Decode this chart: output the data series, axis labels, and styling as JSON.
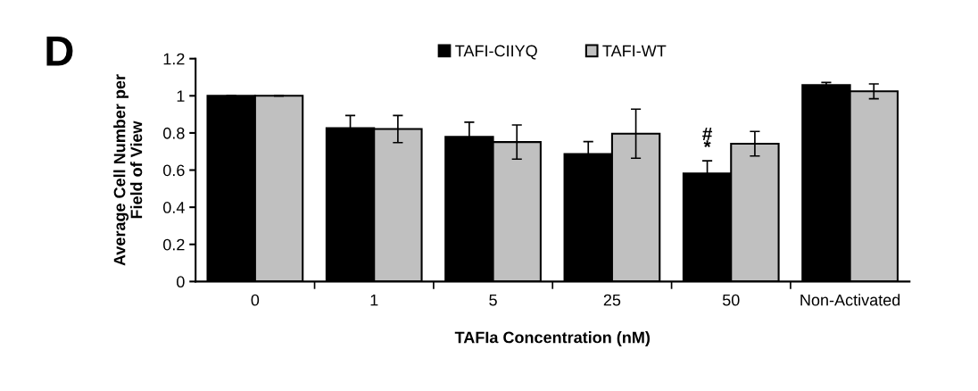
{
  "chart_data": {
    "type": "bar",
    "xlabel": "TAFIa Concentration (nM)",
    "ylabel": "Average Cell Number per\nField of View",
    "categories": [
      "0",
      "1",
      "5",
      "25",
      "50",
      "Non-Activated"
    ],
    "series": [
      {
        "name": "TAFI-CIIYQ",
        "color": "#000000",
        "values": [
          1.0,
          0.826,
          0.779,
          0.687,
          0.582,
          1.058
        ],
        "errors": [
          null,
          0.068,
          0.079,
          0.066,
          0.068,
          0.014
        ]
      },
      {
        "name": "TAFI-WT",
        "color": "#c0c0c0",
        "values": [
          1.0,
          0.821,
          0.751,
          0.796,
          0.742,
          1.024
        ],
        "errors": [
          null,
          0.073,
          0.092,
          0.132,
          0.066,
          0.04
        ]
      }
    ],
    "ylim": [
      0,
      1.2
    ],
    "yticks": [
      0,
      0.2,
      0.4,
      0.6,
      0.8,
      1,
      1.2
    ],
    "grid": false,
    "legend": "top",
    "annotations": [
      "D",
      {
        "text": "#",
        "x": "50",
        "y": 0.74
      },
      {
        "text": "*",
        "x": "50",
        "y": 0.67
      }
    ]
  }
}
